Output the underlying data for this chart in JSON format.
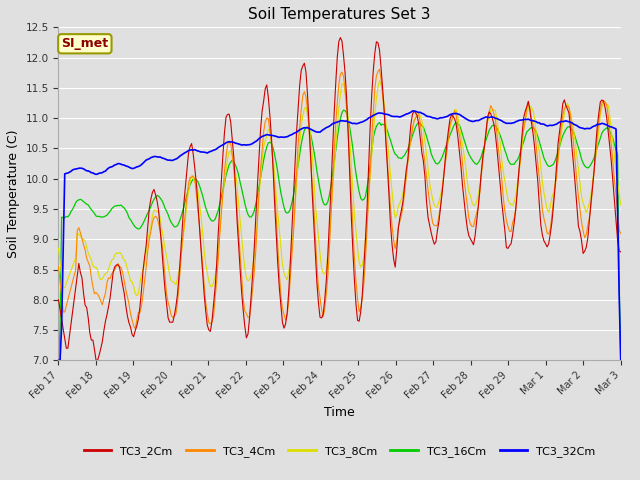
{
  "title": "Soil Temperatures Set 3",
  "xlabel": "Time",
  "ylabel": "Soil Temperature (C)",
  "ylim": [
    7.0,
    12.5
  ],
  "yticks": [
    7.0,
    7.5,
    8.0,
    8.5,
    9.0,
    9.5,
    10.0,
    10.5,
    11.0,
    11.5,
    12.0,
    12.5
  ],
  "series_colors": {
    "TC3_2Cm": "#cc0000",
    "TC3_4Cm": "#ff8800",
    "TC3_8Cm": "#dddd00",
    "TC3_16Cm": "#00cc00",
    "TC3_32Cm": "#0000ff"
  },
  "legend_label": "SI_met",
  "bg_color": "#e0e0e0",
  "grid_color": "#ffffff",
  "day_labels": [
    "Feb 17",
    "Feb 18",
    "Feb 19",
    "Feb 20",
    "Feb 21",
    "Feb 22",
    "Feb 23",
    "Feb 24",
    "Feb 25",
    "Feb 26",
    "Feb 27",
    "Feb 28",
    "Feb 29",
    "Mar 1",
    "Mar 2",
    "Mar 3"
  ]
}
